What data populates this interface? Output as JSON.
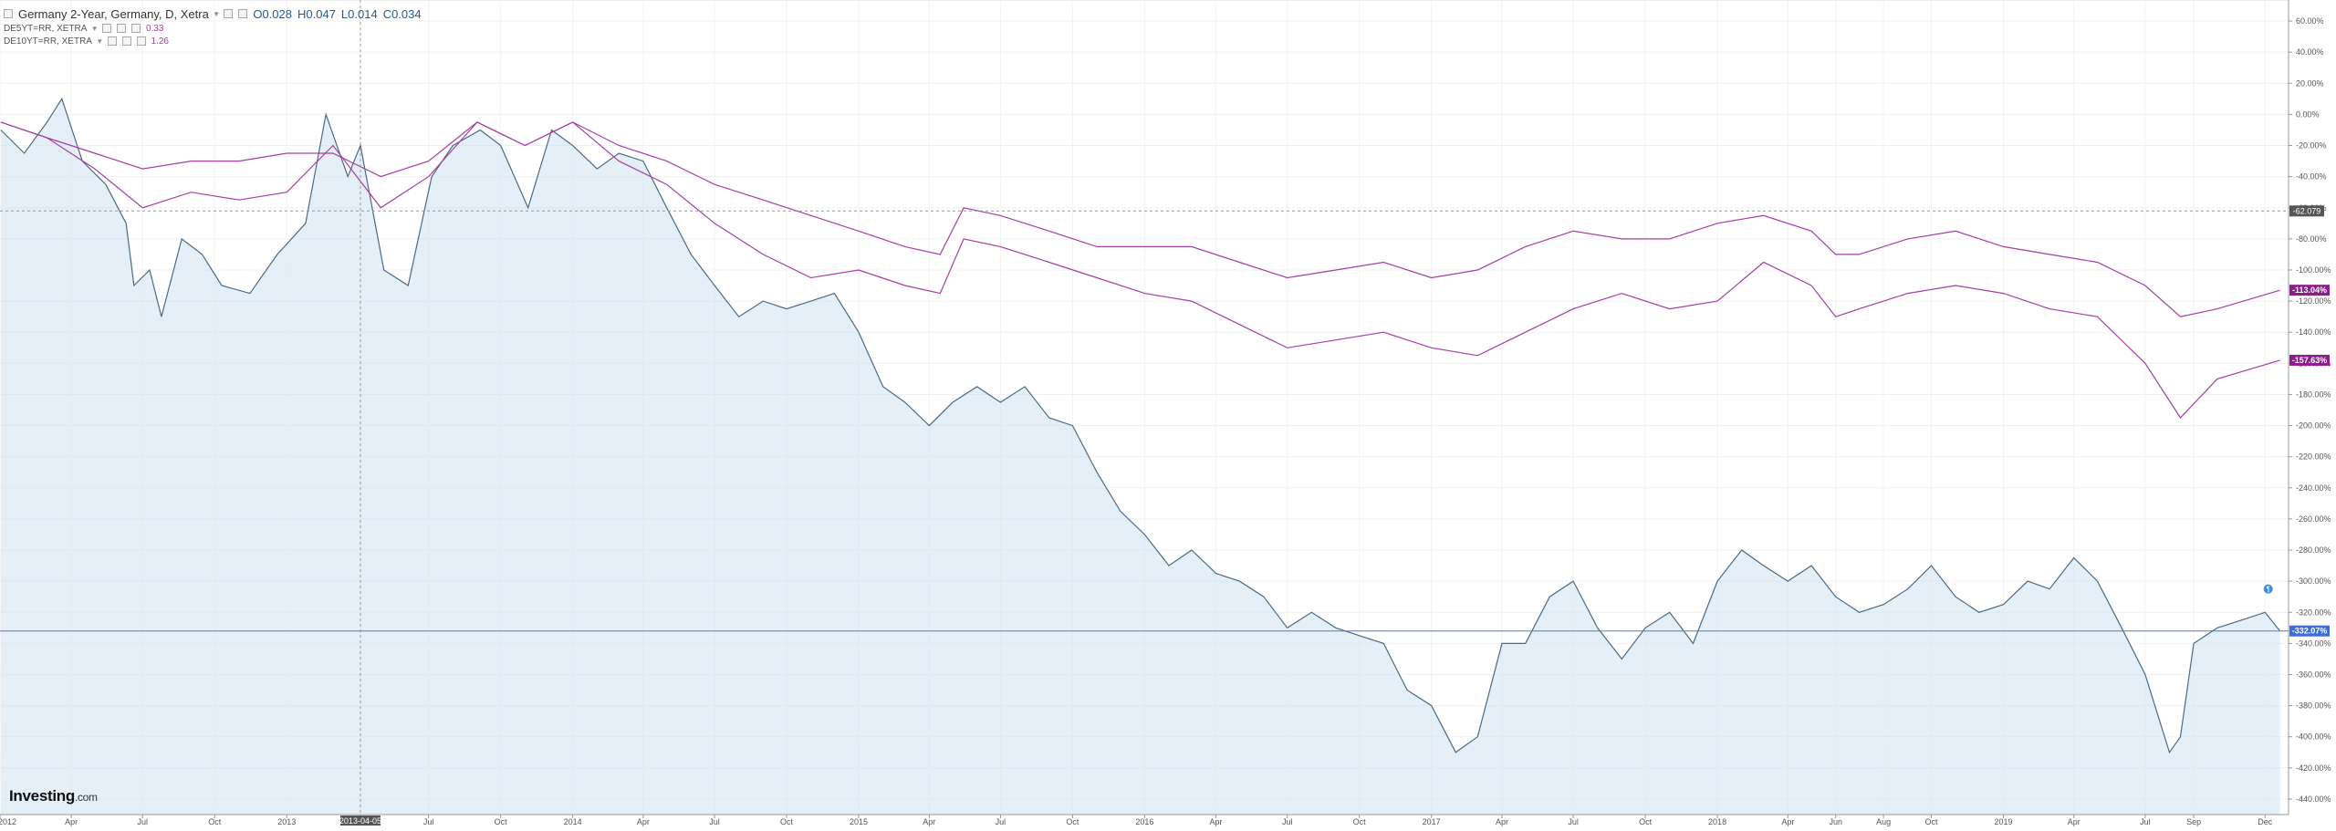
{
  "legend": {
    "title": "Germany 2-Year, Germany, D, Xetra",
    "o": "O0.028",
    "h": "H0.047",
    "l": "L0.014",
    "c": "C0.034",
    "series2_label": "DE5YT=RR, XETRA",
    "series2_value": "0.33",
    "series3_label": "DE10YT=RR, XETRA",
    "series3_value": "1.26"
  },
  "brand": {
    "name": "Investing",
    "suffix": ".com"
  },
  "crosshair": {
    "date_label": "2013-04-05",
    "value_label": "-62.079"
  },
  "chart_data": {
    "type": "line",
    "title": "Germany 2-Year, Germany, D, Xetra",
    "x_tick_labels": [
      "2012",
      "Apr",
      "Jul",
      "Oct",
      "2013",
      "2013-04-05",
      "Jul",
      "Oct",
      "2014",
      "Apr",
      "Jul",
      "Oct",
      "2015",
      "Apr",
      "Jul",
      "Oct",
      "2016",
      "Apr",
      "Jul",
      "Oct",
      "2017",
      "Apr",
      "Jul",
      "Oct",
      "2018",
      "Apr",
      "Jun",
      "Aug",
      "Oct",
      "2019",
      "Apr",
      "Jul",
      "Sep",
      "Dec"
    ],
    "y_tick_labels": [
      "60.00%",
      "40.00%",
      "20.00%",
      "0.00%",
      "-20.00%",
      "-40.00%",
      "-60.00%",
      "-80.00%",
      "-100.00%",
      "-120.00%",
      "-140.00%",
      "-160.00%",
      "-180.00%",
      "-200.00%",
      "-220.00%",
      "-240.00%",
      "-260.00%",
      "-280.00%",
      "-300.00%",
      "-320.00%",
      "-340.00%",
      "-360.00%",
      "-380.00%",
      "-400.00%",
      "-420.00%",
      "-440.00%"
    ],
    "ylim": [
      -450,
      70
    ],
    "y_unit": "%",
    "colors": {
      "de2y": "#4a6a85",
      "de2y_fill": "#cfe2f3",
      "de5y": "#a63ea5",
      "de10y": "#a63ea5",
      "axis_text": "#555555"
    },
    "last_values": [
      "-332.07%",
      "-113.04%",
      "-157.63%"
    ],
    "series": [
      {
        "name": "Germany 2-Year, Germany, D, Xetra",
        "last_label": "-332.07%",
        "x": [
          "2012-01-02",
          "2012-02-01",
          "2012-03-01",
          "2012-03-20",
          "2012-04-15",
          "2012-05-15",
          "2012-06-10",
          "2012-06-20",
          "2012-07-10",
          "2012-07-25",
          "2012-08-20",
          "2012-09-15",
          "2012-10-10",
          "2012-11-15",
          "2012-12-20",
          "2013-01-25",
          "2013-02-20",
          "2013-03-20",
          "2013-04-05",
          "2013-05-05",
          "2013-06-05",
          "2013-07-05",
          "2013-08-01",
          "2013-09-05",
          "2013-10-01",
          "2013-11-05",
          "2013-12-05",
          "2014-01-01",
          "2014-02-01",
          "2014-03-01",
          "2014-04-01",
          "2014-05-01",
          "2014-06-01",
          "2014-07-01",
          "2014-08-01",
          "2014-09-01",
          "2014-10-01",
          "2014-11-01",
          "2014-12-01",
          "2015-01-01",
          "2015-02-01",
          "2015-03-01",
          "2015-04-01",
          "2015-05-01",
          "2015-06-01",
          "2015-07-01",
          "2015-08-01",
          "2015-09-01",
          "2015-10-01",
          "2015-11-01",
          "2015-12-01",
          "2016-01-01",
          "2016-02-01",
          "2016-03-01",
          "2016-04-01",
          "2016-05-01",
          "2016-06-01",
          "2016-07-01",
          "2016-08-01",
          "2016-09-01",
          "2016-10-01",
          "2016-11-01",
          "2016-12-01",
          "2017-01-01",
          "2017-02-01",
          "2017-03-01",
          "2017-04-01",
          "2017-05-01",
          "2017-06-01",
          "2017-07-01",
          "2017-08-01",
          "2017-09-01",
          "2017-10-01",
          "2017-11-01",
          "2017-12-01",
          "2018-01-01",
          "2018-02-01",
          "2018-03-01",
          "2018-04-01",
          "2018-05-01",
          "2018-06-01",
          "2018-07-01",
          "2018-08-01",
          "2018-09-01",
          "2018-10-01",
          "2018-11-01",
          "2018-12-01",
          "2019-01-01",
          "2019-02-01",
          "2019-03-01",
          "2019-04-01",
          "2019-05-01",
          "2019-06-01",
          "2019-07-01",
          "2019-08-01",
          "2019-08-15",
          "2019-09-01",
          "2019-10-01",
          "2019-11-01",
          "2019-12-01",
          "2019-12-20"
        ],
        "y": [
          -10,
          -25,
          -5,
          10,
          -30,
          -45,
          -70,
          -110,
          -100,
          -130,
          -80,
          -90,
          -110,
          -115,
          -90,
          -70,
          0,
          -40,
          -20,
          -100,
          -110,
          -40,
          -20,
          -10,
          -20,
          -60,
          -10,
          -20,
          -35,
          -25,
          -30,
          -60,
          -90,
          -110,
          -130,
          -120,
          -125,
          -120,
          -115,
          -140,
          -175,
          -185,
          -200,
          -185,
          -175,
          -185,
          -175,
          -195,
          -200,
          -230,
          -255,
          -270,
          -290,
          -280,
          -295,
          -300,
          -310,
          -330,
          -320,
          -330,
          -335,
          -340,
          -370,
          -380,
          -410,
          -400,
          -340,
          -340,
          -310,
          -300,
          -330,
          -350,
          -330,
          -320,
          -340,
          -300,
          -280,
          -290,
          -300,
          -290,
          -310,
          -320,
          -315,
          -305,
          -290,
          -310,
          -320,
          -315,
          -300,
          -305,
          -285,
          -300,
          -330,
          -360,
          -410,
          -400,
          -340,
          -330,
          -325,
          -320,
          -332
        ]
      },
      {
        "name": "DE5YT=RR, XETRA",
        "last_label": "-157.63%",
        "x": [
          "2012-01-02",
          "2012-03-01",
          "2012-05-01",
          "2012-07-01",
          "2012-09-01",
          "2012-11-01",
          "2013-01-01",
          "2013-03-01",
          "2013-05-01",
          "2013-07-01",
          "2013-09-01",
          "2013-11-01",
          "2014-01-01",
          "2014-03-01",
          "2014-05-01",
          "2014-07-01",
          "2014-09-01",
          "2014-11-01",
          "2015-01-01",
          "2015-03-01",
          "2015-04-15",
          "2015-05-15",
          "2015-07-01",
          "2015-09-01",
          "2015-11-01",
          "2016-01-01",
          "2016-03-01",
          "2016-05-01",
          "2016-07-01",
          "2016-09-01",
          "2016-11-01",
          "2017-01-01",
          "2017-03-01",
          "2017-05-01",
          "2017-07-01",
          "2017-09-01",
          "2017-11-01",
          "2018-01-01",
          "2018-03-01",
          "2018-05-01",
          "2018-06-01",
          "2018-07-01",
          "2018-09-01",
          "2018-11-01",
          "2019-01-01",
          "2019-03-01",
          "2019-05-01",
          "2019-07-01",
          "2019-08-15",
          "2019-10-01",
          "2019-12-20"
        ],
        "y": [
          -5,
          -15,
          -35,
          -60,
          -50,
          -55,
          -50,
          -20,
          -60,
          -40,
          -5,
          -20,
          -5,
          -30,
          -45,
          -70,
          -90,
          -105,
          -100,
          -110,
          -115,
          -80,
          -85,
          -95,
          -105,
          -115,
          -120,
          -135,
          -150,
          -145,
          -140,
          -150,
          -155,
          -140,
          -125,
          -115,
          -125,
          -120,
          -95,
          -110,
          -130,
          -125,
          -115,
          -110,
          -115,
          -125,
          -130,
          -160,
          -195,
          -170,
          -158
        ]
      },
      {
        "name": "DE10YT=RR, XETRA",
        "last_label": "-113.04%",
        "x": [
          "2012-01-02",
          "2012-03-01",
          "2012-05-01",
          "2012-07-01",
          "2012-09-01",
          "2012-11-01",
          "2013-01-01",
          "2013-03-01",
          "2013-05-01",
          "2013-07-01",
          "2013-09-01",
          "2013-11-01",
          "2014-01-01",
          "2014-03-01",
          "2014-05-01",
          "2014-07-01",
          "2014-09-01",
          "2014-11-01",
          "2015-01-01",
          "2015-03-01",
          "2015-04-15",
          "2015-05-15",
          "2015-07-01",
          "2015-09-01",
          "2015-11-01",
          "2016-01-01",
          "2016-03-01",
          "2016-05-01",
          "2016-07-01",
          "2016-09-01",
          "2016-11-01",
          "2017-01-01",
          "2017-03-01",
          "2017-05-01",
          "2017-07-01",
          "2017-09-01",
          "2017-11-01",
          "2018-01-01",
          "2018-03-01",
          "2018-05-01",
          "2018-06-01",
          "2018-07-01",
          "2018-09-01",
          "2018-11-01",
          "2019-01-01",
          "2019-03-01",
          "2019-05-01",
          "2019-07-01",
          "2019-08-15",
          "2019-10-01",
          "2019-12-20"
        ],
        "y": [
          -5,
          -15,
          -25,
          -35,
          -30,
          -30,
          -25,
          -25,
          -40,
          -30,
          -5,
          -20,
          -5,
          -20,
          -30,
          -45,
          -55,
          -65,
          -75,
          -85,
          -90,
          -60,
          -65,
          -75,
          -85,
          -85,
          -85,
          -95,
          -105,
          -100,
          -95,
          -105,
          -100,
          -85,
          -75,
          -80,
          -80,
          -70,
          -65,
          -75,
          -90,
          -90,
          -80,
          -75,
          -85,
          -90,
          -95,
          -110,
          -130,
          -125,
          -113
        ]
      }
    ]
  }
}
